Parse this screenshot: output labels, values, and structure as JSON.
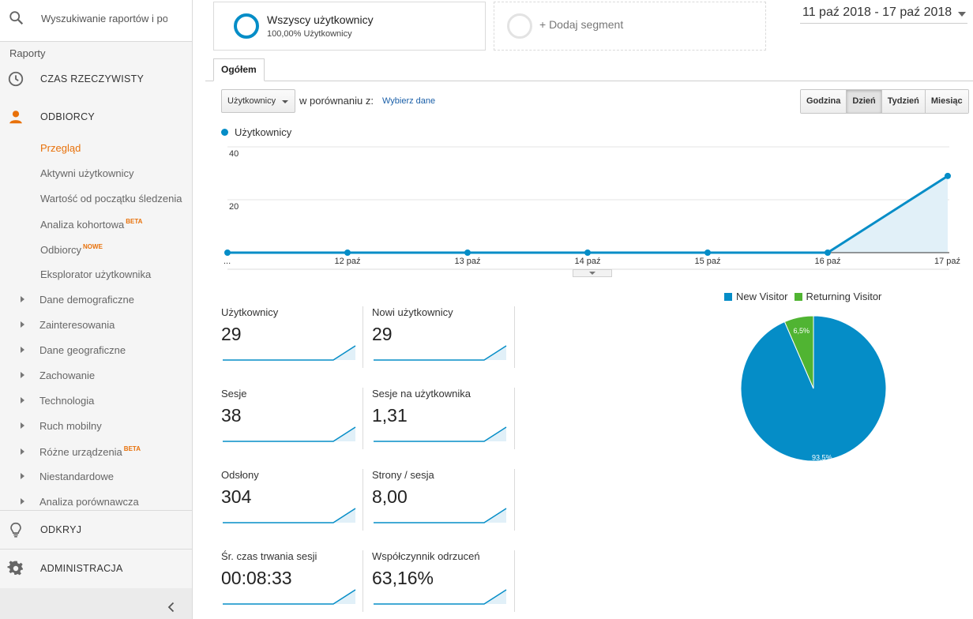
{
  "sidebar": {
    "search_placeholder": "Wyszukiwanie raportów i pomocy",
    "section_title": "Raporty",
    "realtime": "CZAS RZECZYWISTY",
    "audience": "ODBIORCY",
    "audience_items": [
      {
        "label": "Przegląd",
        "badge": "",
        "active": true
      },
      {
        "label": "Aktywni użytkownicy",
        "badge": ""
      },
      {
        "label": "Wartość od początku śledzenia",
        "badge": ""
      },
      {
        "label": "Analiza kohortowa",
        "badge": "BETA"
      },
      {
        "label": "Odbiorcy",
        "badge": "NOWE"
      },
      {
        "label": "Eksplorator użytkownika",
        "badge": ""
      }
    ],
    "tree_items": [
      {
        "label": "Dane demograficzne",
        "badge": ""
      },
      {
        "label": "Zainteresowania",
        "badge": ""
      },
      {
        "label": "Dane geograficzne",
        "badge": ""
      },
      {
        "label": "Zachowanie",
        "badge": ""
      },
      {
        "label": "Technologia",
        "badge": ""
      },
      {
        "label": "Ruch mobilny",
        "badge": ""
      },
      {
        "label": "Różne urządzenia",
        "badge": "BETA"
      },
      {
        "label": "Niestandardowe",
        "badge": ""
      },
      {
        "label": "Analiza porównawcza",
        "badge": ""
      }
    ],
    "discover": "ODKRYJ",
    "admin": "ADMINISTRACJA"
  },
  "segments": {
    "primary_title": "Wszyscy użytkownicy",
    "primary_sub": "100,00% Użytkownicy",
    "add_label": "+ Dodaj segment"
  },
  "date_range": "11 paź 2018 - 17 paź 2018",
  "tabs": {
    "overview": "Ogółem"
  },
  "controls": {
    "metric": "Użytkownicy",
    "compare_label": "w porównaniu z:",
    "compare_link": "Wybierz dane",
    "granularity": [
      {
        "label": "Godzina",
        "active": false
      },
      {
        "label": "Dzień",
        "active": true
      },
      {
        "label": "Tydzień",
        "active": false
      },
      {
        "label": "Miesiąc",
        "active": false
      }
    ]
  },
  "colors": {
    "accent": "#058dc7",
    "returning": "#50b432",
    "active_nav": "#e8710a"
  },
  "chart_data": [
    {
      "type": "line",
      "series": [
        {
          "name": "Użytkownicy",
          "values": [
            0,
            0,
            0,
            0,
            0,
            0,
            29
          ]
        }
      ],
      "x": [
        "...",
        "12 paź",
        "13 paź",
        "14 paź",
        "15 paź",
        "16 paź",
        "17 paź"
      ],
      "yticks": [
        "20",
        "40"
      ],
      "ylim": [
        0,
        40
      ],
      "grid": true,
      "legend": "top-left"
    },
    {
      "type": "pie",
      "categories": [
        "New Visitor",
        "Returning Visitor"
      ],
      "values": [
        93.5,
        6.5
      ],
      "labels": [
        "93,5%",
        "6,5%"
      ],
      "colors": [
        "#058dc7",
        "#50b432"
      ],
      "legend": "top"
    }
  ],
  "metrics": [
    {
      "label": "Użytkownicy",
      "value": "29",
      "spark": [
        0,
        0,
        0,
        0,
        0,
        0,
        29
      ]
    },
    {
      "label": "Nowi użytkownicy",
      "value": "29",
      "spark": [
        0,
        0,
        0,
        0,
        0,
        0,
        29
      ]
    },
    {
      "label": "Sesje",
      "value": "38",
      "spark": [
        0,
        0,
        0,
        0,
        0,
        0,
        38
      ]
    },
    {
      "label": "Sesje na użytkownika",
      "value": "1,31",
      "spark": [
        0,
        0,
        0,
        0,
        0,
        0,
        1.31
      ]
    },
    {
      "label": "Odsłony",
      "value": "304",
      "spark": [
        0,
        0,
        0,
        0,
        0,
        0,
        304
      ]
    },
    {
      "label": "Strony / sesja",
      "value": "8,00",
      "spark": [
        0,
        0,
        0,
        0,
        0,
        0,
        8
      ]
    },
    {
      "label": "Śr. czas trwania sesji",
      "value": "00:08:33",
      "spark": [
        0,
        0,
        0,
        0,
        0,
        0,
        513
      ]
    },
    {
      "label": "Współczynnik odrzuceń",
      "value": "63,16%",
      "spark": [
        0,
        0,
        0,
        0,
        0,
        0,
        63.16
      ]
    }
  ]
}
